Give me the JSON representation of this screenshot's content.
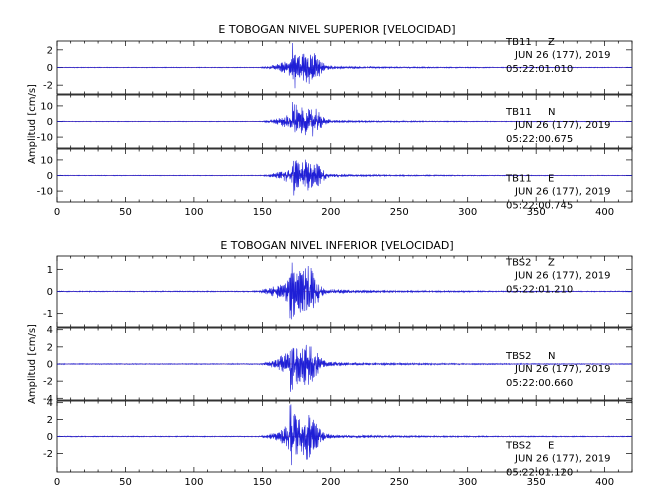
{
  "chart_data": [
    {
      "type": "line",
      "title": "E TOBOGAN NIVEL SUPERIOR [VELOCIDAD]",
      "ylabel": "Amplitud [cm/s]",
      "xlabel": "",
      "xlim": [
        0,
        420
      ],
      "xticks": [
        "0",
        "50",
        "100",
        "150",
        "200",
        "250",
        "300",
        "350",
        "400"
      ],
      "grid": false,
      "line_color": "#1f1fd6",
      "series": [
        {
          "station": "TB11",
          "component": "Z",
          "date": "JUN 26 (177), 2019",
          "time": "05:22:01.010",
          "ylim": [
            -3,
            3
          ],
          "yticks": [
            "2",
            "0",
            "-2"
          ],
          "onset_s": 145,
          "peak_s": 172,
          "peak_amplitude": 2.6
        },
        {
          "station": "TB11",
          "component": "N",
          "date": "JUN 26 (177), 2019",
          "time": "05:22:00.675",
          "ylim": [
            -17,
            17
          ],
          "yticks": [
            "10",
            "0",
            "-10"
          ],
          "onset_s": 145,
          "peak_s": 172,
          "peak_amplitude": 13
        },
        {
          "station": "TB11",
          "component": "E",
          "date": "JUN 26 (177), 2019",
          "time": "05:22:00.745",
          "ylim": [
            -17,
            17
          ],
          "yticks": [
            "10",
            "0",
            "-10"
          ],
          "onset_s": 145,
          "peak_s": 172,
          "peak_amplitude": 14
        }
      ]
    },
    {
      "type": "line",
      "title": "E TOBOGAN NIVEL INFERIOR [VELOCIDAD]",
      "ylabel": "Amplitud [cm/s]",
      "xlabel": "",
      "xlim": [
        0,
        420
      ],
      "xticks": [
        "0",
        "50",
        "100",
        "150",
        "200",
        "250",
        "300",
        "350",
        "400"
      ],
      "grid": false,
      "line_color": "#1f1fd6",
      "series": [
        {
          "station": "TBS2",
          "component": "Z",
          "date": "JUN 26 (177), 2019",
          "time": "05:22:01.210",
          "ylim": [
            -1.6,
            1.6
          ],
          "yticks": [
            "1",
            "0",
            "-1"
          ],
          "onset_s": 140,
          "peak_s": 170,
          "peak_amplitude": 1.5
        },
        {
          "station": "TBS2",
          "component": "N",
          "date": "JUN 26 (177), 2019",
          "time": "05:22:00.660",
          "ylim": [
            -4.2,
            4.2
          ],
          "yticks": [
            "4",
            "2",
            "0",
            "-2",
            "-4"
          ],
          "onset_s": 145,
          "peak_s": 170,
          "peak_amplitude": 3.8
        },
        {
          "station": "TBS2",
          "component": "E",
          "date": "JUN 26 (177), 2019",
          "time": "05:22:01.120",
          "ylim": [
            -4.2,
            4.2
          ],
          "yticks": [
            "4",
            "2",
            "0",
            "-2"
          ],
          "onset_s": 145,
          "peak_s": 170,
          "peak_amplitude": 3.6
        }
      ]
    }
  ]
}
